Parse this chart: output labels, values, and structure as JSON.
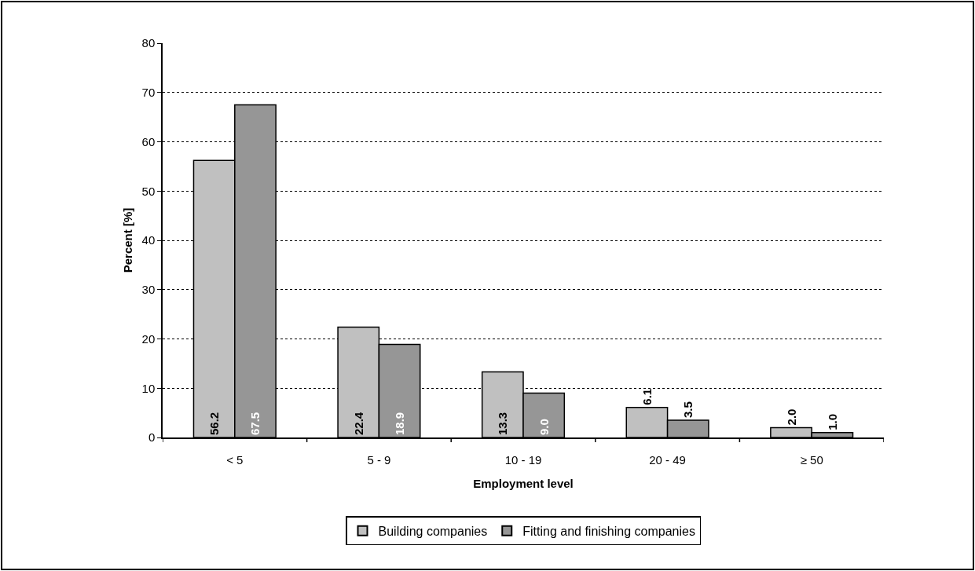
{
  "chart_data": {
    "type": "bar",
    "xlabel": "Employment level",
    "ylabel": "Percent [%]",
    "categories": [
      "< 5",
      "5 - 9",
      "10 - 19",
      "20 - 49",
      "≥ 50"
    ],
    "series": [
      {
        "name": "Building companies",
        "color": "#c0c0c0",
        "values": [
          56.2,
          22.4,
          13.3,
          6.1,
          2.0
        ],
        "value_labels": [
          "56.2",
          "22.4",
          "13.3",
          "6.1",
          "2.0"
        ]
      },
      {
        "name": "Fitting and finishing companies",
        "color": "#969696",
        "values": [
          67.5,
          18.9,
          9.0,
          3.5,
          1.0
        ],
        "value_labels": [
          "67.5",
          "18.9",
          "9.0",
          "3.5",
          "1.0"
        ]
      }
    ],
    "ylim": [
      0,
      80
    ],
    "yticks": [
      0,
      10,
      20,
      30,
      40,
      50,
      60,
      70,
      80
    ],
    "grid": "y",
    "legend": "bottom"
  }
}
